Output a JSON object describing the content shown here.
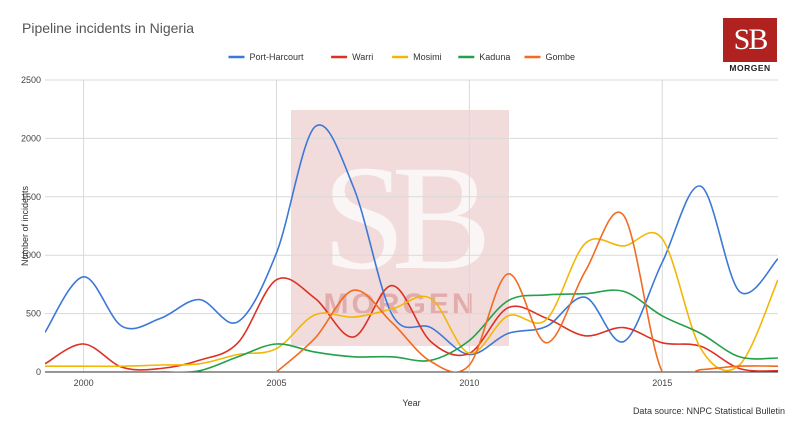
{
  "title": "Pipeline incidents in Nigeria",
  "logo": {
    "mark": "SB",
    "sub": "MORGEN"
  },
  "watermark": {
    "mark": "SB",
    "sub": "MORGEN"
  },
  "source": "Data source: NNPC Statistical Bulletin",
  "chart_data": {
    "type": "line",
    "title": "Pipeline incidents in Nigeria",
    "xlabel": "Year",
    "ylabel": "Number of incidents",
    "xlim": [
      1999,
      2018
    ],
    "ylim": [
      0,
      2500
    ],
    "x_ticks": [
      2000,
      2005,
      2010,
      2015
    ],
    "y_ticks": [
      0,
      500,
      1000,
      1500,
      2000,
      2500
    ],
    "grid": "vertical and horizontal",
    "legend_position": "top",
    "x": [
      1999,
      2000,
      2001,
      2002,
      2003,
      2004,
      2005,
      2006,
      2007,
      2008,
      2009,
      2010,
      2011,
      2012,
      2013,
      2014,
      2015,
      2016,
      2017,
      2018
    ],
    "series": [
      {
        "name": "Port-Harcourt",
        "color": "#3c78d8",
        "values": [
          340,
          815,
          390,
          460,
          620,
          430,
          1020,
          2100,
          1580,
          490,
          380,
          150,
          330,
          390,
          640,
          260,
          940,
          1590,
          690,
          970
        ]
      },
      {
        "name": "Warri",
        "color": "#db3225",
        "values": [
          70,
          240,
          40,
          30,
          100,
          250,
          790,
          630,
          300,
          740,
          260,
          160,
          550,
          460,
          310,
          380,
          250,
          220,
          30,
          10
        ]
      },
      {
        "name": "Mosimi",
        "color": "#f2b705",
        "values": [
          50,
          50,
          50,
          60,
          70,
          150,
          200,
          490,
          470,
          540,
          630,
          160,
          480,
          450,
          1100,
          1080,
          1140,
          200,
          60,
          790
        ]
      },
      {
        "name": "Kaduna",
        "color": "#24a04a",
        "values": [
          0,
          0,
          0,
          0,
          10,
          130,
          240,
          170,
          130,
          130,
          100,
          270,
          610,
          660,
          670,
          690,
          480,
          330,
          130,
          120
        ]
      },
      {
        "name": "Gombe",
        "color": "#f26b21",
        "values": [
          null,
          null,
          null,
          null,
          null,
          null,
          0,
          290,
          700,
          420,
          90,
          60,
          840,
          250,
          860,
          1340,
          0,
          20,
          50,
          50
        ]
      }
    ]
  }
}
